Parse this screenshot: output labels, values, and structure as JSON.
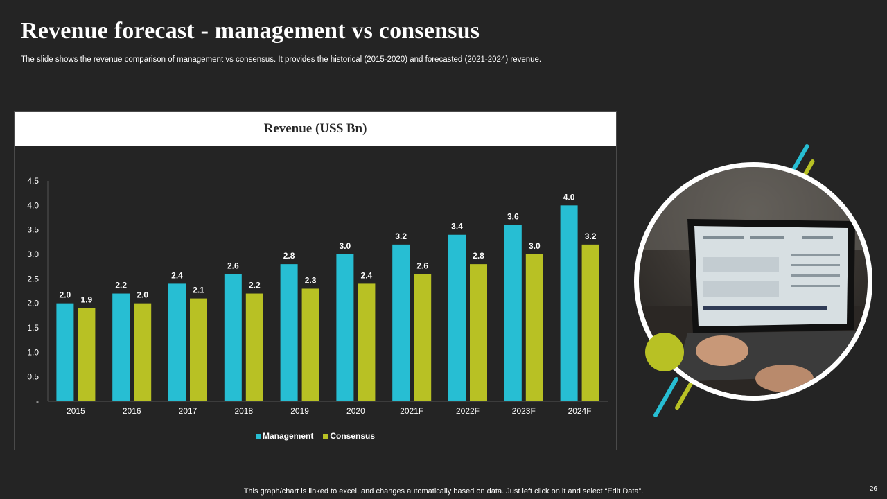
{
  "slide": {
    "title": "Revenue forecast - management vs consensus",
    "subtitle": "The slide shows the revenue comparison of management vs consensus. It provides the historical (2015-2020) and forecasted (2021-2024) revenue.",
    "footer_note": "This graph/chart is linked to excel,  and changes automatically based on data. Just left click on it and select “Edit Data”.",
    "page_number": "26"
  },
  "colors": {
    "management": "#27bed3",
    "consensus": "#b8c124",
    "background": "#242424",
    "accent_blue": "#27bed3",
    "accent_green": "#b8c124"
  },
  "chart_data": {
    "type": "bar",
    "title": "Revenue (US$ Bn)",
    "categories": [
      "2015",
      "2016",
      "2017",
      "2018",
      "2019",
      "2020",
      "2021F",
      "2022F",
      "2023F",
      "2024F"
    ],
    "series": [
      {
        "name": "Management",
        "values": [
          2.0,
          2.2,
          2.4,
          2.6,
          2.8,
          3.0,
          3.2,
          3.4,
          3.6,
          4.0
        ]
      },
      {
        "name": "Consensus",
        "values": [
          1.9,
          2.0,
          2.1,
          2.2,
          2.3,
          2.4,
          2.6,
          2.8,
          3.0,
          3.2
        ]
      }
    ],
    "data_labels": [
      [
        "2.0",
        "2.2",
        "2.4",
        "2.6",
        "2.8",
        "3.0",
        "3.2",
        "3.4",
        "3.6",
        "4.0"
      ],
      [
        "1.9",
        "2.0",
        "2.1",
        "2.2",
        "2.3",
        "2.4",
        "2.6",
        "2.8",
        "3.0",
        "3.2"
      ]
    ],
    "ylim": [
      0,
      4.5
    ],
    "yticks": [
      0,
      0.5,
      1.0,
      1.5,
      2.0,
      2.5,
      3.0,
      3.5,
      4.0,
      4.5
    ],
    "ytick_labels": [
      "-",
      "0.5",
      "1.0",
      "1.5",
      "2.0",
      "2.5",
      "3.0",
      "3.5",
      "4.0",
      "4.5"
    ],
    "grid": false,
    "legend_position": "bottom"
  },
  "image": {
    "description_icon": "laptop-photo"
  }
}
